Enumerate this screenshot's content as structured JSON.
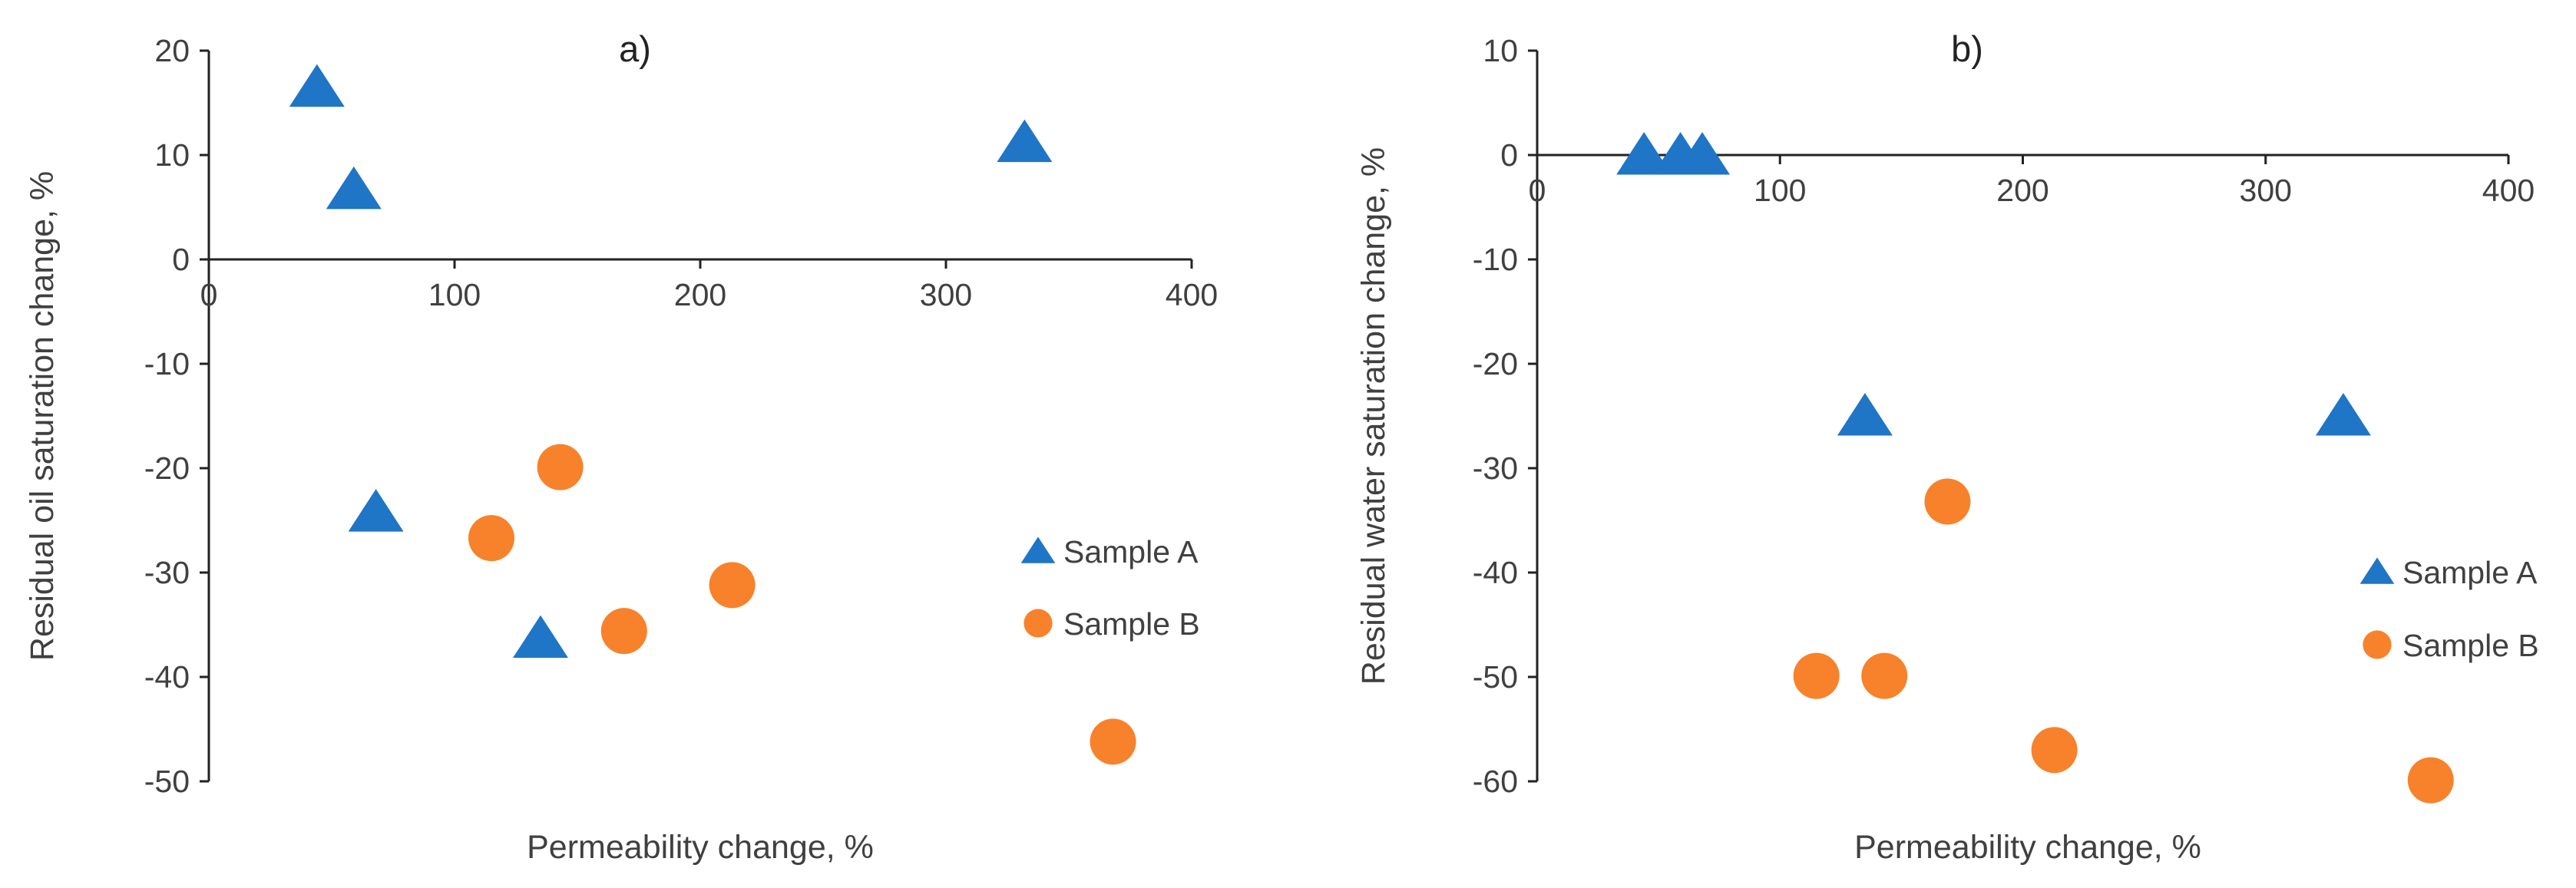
{
  "colors": {
    "sample_a": "#1f75c6",
    "sample_b": "#f7822b",
    "axis": "#222222",
    "text": "#404040"
  },
  "chart_data": [
    {
      "type": "scatter",
      "panel_label": "a)",
      "xlabel": "Permeability change, %",
      "ylabel": "Residual oil saturation change, %",
      "xlim": [
        0,
        400
      ],
      "ylim": [
        -50,
        20
      ],
      "x_ticks": [
        0,
        100,
        200,
        300,
        400
      ],
      "y_ticks": [
        20,
        10,
        0,
        -10,
        -20,
        -30,
        -40,
        -50
      ],
      "grid": false,
      "legend_position": "right",
      "series": [
        {
          "name": "Sample A",
          "marker": "triangle",
          "color_key": "sample_a",
          "points": [
            {
              "x": 44,
              "y": 16.5
            },
            {
              "x": 59,
              "y": 6.7
            },
            {
              "x": 332,
              "y": 11.2
            },
            {
              "x": 68,
              "y": -24.2
            },
            {
              "x": 135,
              "y": -36.3
            }
          ]
        },
        {
          "name": "Sample B",
          "marker": "circle",
          "color_key": "sample_b",
          "points": [
            {
              "x": 143,
              "y": -19.9
            },
            {
              "x": 115,
              "y": -26.7
            },
            {
              "x": 213,
              "y": -31.2
            },
            {
              "x": 169,
              "y": -35.6
            },
            {
              "x": 368,
              "y": -46.2
            }
          ]
        }
      ]
    },
    {
      "type": "scatter",
      "panel_label": "b)",
      "xlabel": "Permeability change, %",
      "ylabel": "Residual water saturation change, %",
      "xlim": [
        0,
        400
      ],
      "ylim": [
        -60,
        10
      ],
      "x_ticks": [
        0,
        100,
        200,
        300,
        400
      ],
      "y_ticks": [
        10,
        0,
        -10,
        -20,
        -30,
        -40,
        -50,
        -60
      ],
      "grid": false,
      "legend_position": "right",
      "series": [
        {
          "name": "Sample A",
          "marker": "triangle",
          "color_key": "sample_a",
          "points": [
            {
              "x": 44,
              "y": 0
            },
            {
              "x": 59,
              "y": 0
            },
            {
              "x": 68,
              "y": 0
            },
            {
              "x": 135,
              "y": -25
            },
            {
              "x": 332,
              "y": -25
            }
          ]
        },
        {
          "name": "Sample B",
          "marker": "circle",
          "color_key": "sample_b",
          "points": [
            {
              "x": 169,
              "y": -33.2
            },
            {
              "x": 115,
              "y": -49.9
            },
            {
              "x": 143,
              "y": -49.9
            },
            {
              "x": 213,
              "y": -57
            },
            {
              "x": 368,
              "y": -59.9
            }
          ]
        }
      ]
    }
  ]
}
